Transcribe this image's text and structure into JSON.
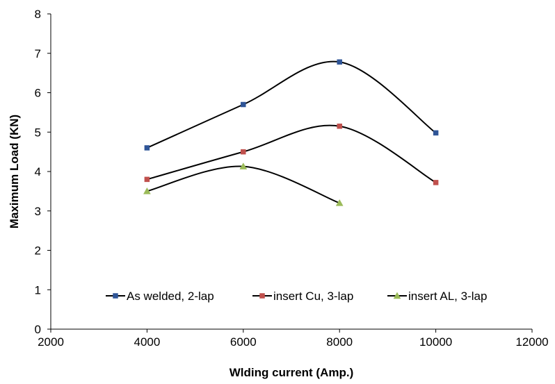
{
  "chart_data": {
    "type": "line",
    "title": "",
    "xlabel": "Wlding current (Amp.)",
    "ylabel": "Maximum Load (KN)",
    "xlim": [
      2000,
      12000
    ],
    "ylim": [
      0,
      8
    ],
    "xticks": [
      2000,
      4000,
      6000,
      8000,
      10000,
      12000
    ],
    "yticks": [
      0,
      1,
      2,
      3,
      4,
      5,
      6,
      7,
      8
    ],
    "grid": false,
    "smooth": true,
    "legend_position": "bottom-center",
    "series": [
      {
        "name": "As welded, 2-lap",
        "marker": "square",
        "color": "#2F5597",
        "x": [
          4000,
          6000,
          8000,
          10000
        ],
        "y": [
          4.6,
          5.7,
          6.78,
          4.98
        ]
      },
      {
        "name": "insert Cu, 3-lap",
        "marker": "square",
        "color": "#C0504D",
        "x": [
          4000,
          6000,
          8000,
          10000
        ],
        "y": [
          3.8,
          4.5,
          5.15,
          3.72
        ]
      },
      {
        "name": "insert AL, 3-lap",
        "marker": "triangle",
        "color": "#9BBB59",
        "x": [
          4000,
          6000,
          8000
        ],
        "y": [
          3.5,
          4.13,
          3.2
        ]
      }
    ]
  }
}
